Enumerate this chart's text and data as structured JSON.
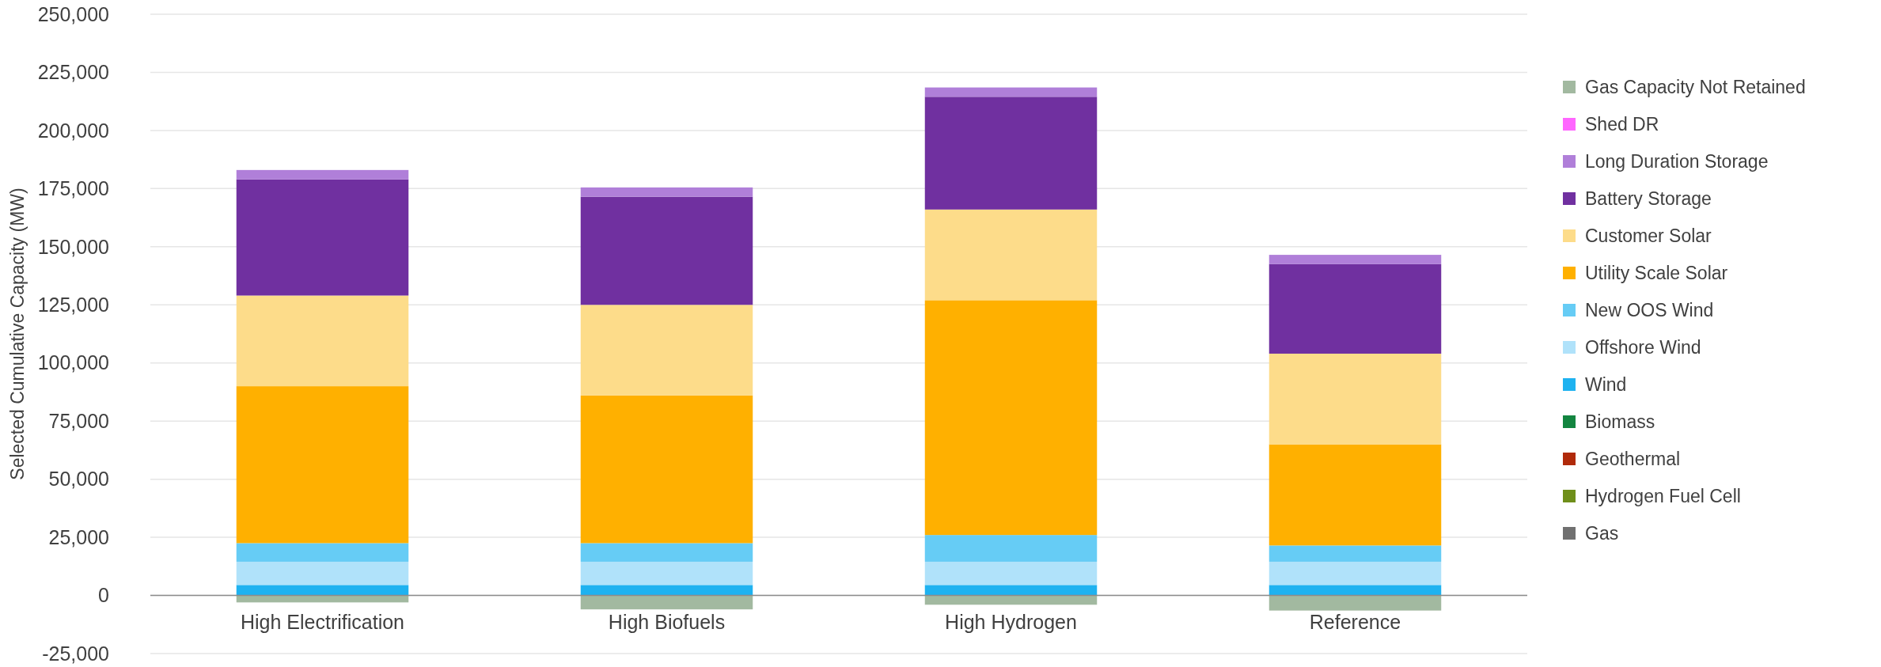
{
  "chart_data": {
    "type": "bar",
    "stacked": true,
    "ylabel": "Selected  Cumulative  Capacity  (MW)",
    "categories": [
      "High Electrification",
      "High Biofuels",
      "High Hydrogen",
      "Reference"
    ],
    "ylim": [
      -25000,
      250000
    ],
    "yticks": [
      {
        "value": -25000,
        "label": "-25,000"
      },
      {
        "value": 0,
        "label": "0"
      },
      {
        "value": 25000,
        "label": "25,000"
      },
      {
        "value": 50000,
        "label": "50,000"
      },
      {
        "value": 75000,
        "label": "75,000"
      },
      {
        "value": 100000,
        "label": "100,000"
      },
      {
        "value": 125000,
        "label": "125,000"
      },
      {
        "value": 150000,
        "label": "150,000"
      },
      {
        "value": 175000,
        "label": "175,000"
      },
      {
        "value": 200000,
        "label": "200,000"
      },
      {
        "value": 225000,
        "label": "225,000"
      },
      {
        "value": 250000,
        "label": "250,000"
      }
    ],
    "grid": "y",
    "legend": "right",
    "series": [
      {
        "name": "Gas",
        "color": "#707070",
        "values": [
          0,
          0,
          0,
          0
        ]
      },
      {
        "name": "Hydrogen Fuel Cell",
        "color": "#6f8f1a",
        "values": [
          0,
          0,
          0,
          0
        ]
      },
      {
        "name": "Geothermal",
        "color": "#b02a0a",
        "values": [
          0,
          0,
          0,
          0
        ]
      },
      {
        "name": "Biomass",
        "color": "#138540",
        "values": [
          0,
          0,
          0,
          0
        ]
      },
      {
        "name": "Wind",
        "color": "#1eb2f0",
        "values": [
          4500,
          4500,
          4500,
          4500
        ]
      },
      {
        "name": "Offshore Wind",
        "color": "#b0e2fa",
        "values": [
          10000,
          10000,
          10000,
          10000
        ]
      },
      {
        "name": "New OOS Wind",
        "color": "#66ccf5",
        "values": [
          8000,
          8000,
          11500,
          7000
        ]
      },
      {
        "name": "Utility Scale Solar",
        "color": "#ffb000",
        "values": [
          67500,
          63500,
          101000,
          43500
        ]
      },
      {
        "name": "Customer Solar",
        "color": "#fddc8a",
        "values": [
          39000,
          39000,
          39000,
          39000
        ]
      },
      {
        "name": "Battery Storage",
        "color": "#7030a0",
        "values": [
          50000,
          46500,
          48500,
          38500
        ]
      },
      {
        "name": "Long Duration Storage",
        "color": "#b07fd9",
        "values": [
          4000,
          4000,
          4000,
          4000
        ]
      },
      {
        "name": "Shed DR",
        "color": "#ff66ff",
        "values": [
          0,
          0,
          0,
          0
        ]
      },
      {
        "name": "Gas Capacity Not Retained",
        "color": "#a2b9a0",
        "values": [
          -3000,
          -6000,
          -4000,
          -6500
        ]
      }
    ]
  }
}
